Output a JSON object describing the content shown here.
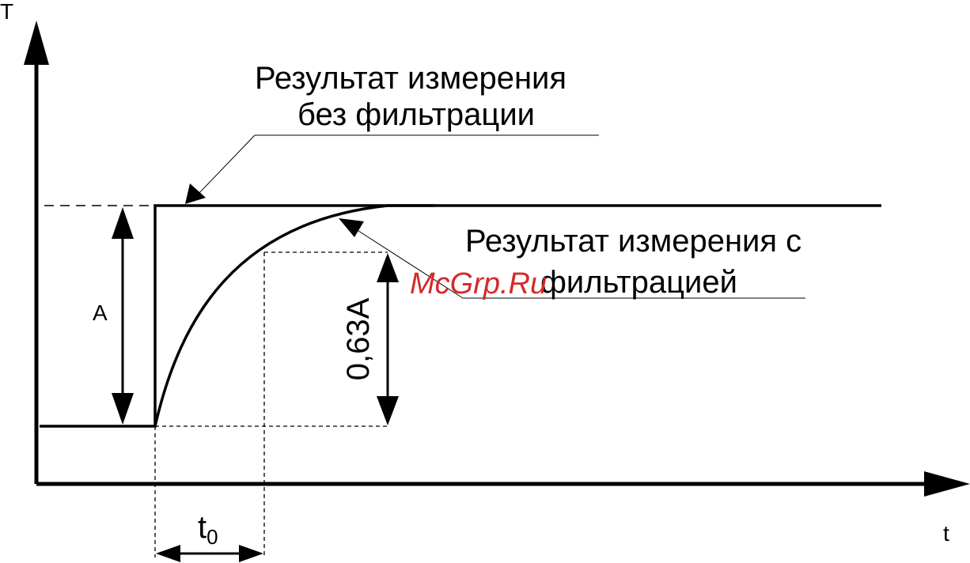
{
  "axes": {
    "y_label": "T",
    "x_label": "t"
  },
  "labels": {
    "unfiltered_line1": "Результат измерения",
    "unfiltered_line2": "без фильтрации",
    "filtered_line1": "Результат измерения с",
    "filtered_line2": "фильтрацией",
    "amplitude": "A",
    "fraction": "0,63A",
    "time_constant_main": "t",
    "time_constant_sub": "0"
  },
  "watermark": "McGrp.Ru",
  "colors": {
    "line": "#000000",
    "watermark": "#d42a2a"
  }
}
